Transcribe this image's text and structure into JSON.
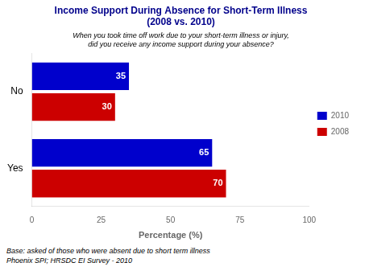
{
  "chart_data": {
    "type": "bar",
    "orientation": "horizontal",
    "title": [
      "Income Support During Absence for Short-Term Illness",
      "(2008 vs. 2010)"
    ],
    "subtitle": [
      "When you took time off work due to your short-term illness or injury,",
      "did you receive any income support during your absence?"
    ],
    "footnote": [
      "Base: asked of those who were absent due to short term illness",
      "Phoenix SPI; HRSDC EI Survey - 2010"
    ],
    "xlabel": "Percentage (%)",
    "categories": [
      "No",
      "Yes"
    ],
    "series": [
      {
        "name": "2010",
        "color": "#0000cc",
        "values": [
          35,
          65
        ]
      },
      {
        "name": "2008",
        "color": "#cc0000",
        "values": [
          30,
          70
        ]
      }
    ],
    "xlim": [
      0,
      100
    ],
    "xticks": [
      0,
      25,
      50,
      75,
      100
    ],
    "grid": false,
    "legend": "right",
    "data_labels": true
  }
}
